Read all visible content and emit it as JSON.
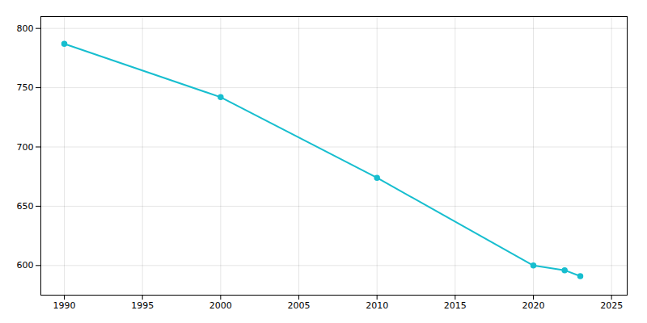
{
  "chart_data": {
    "type": "line",
    "x": [
      1990,
      2000,
      2010,
      2020,
      2022,
      2023
    ],
    "values": [
      787,
      742,
      674,
      600,
      596,
      591
    ],
    "color": "#17BECF",
    "marker": "circle",
    "xlim": [
      1988.5,
      2026
    ],
    "xticks": [
      1990,
      1995,
      2000,
      2005,
      2010,
      2015,
      2020,
      2025
    ],
    "ylim": [
      575,
      810
    ],
    "yticks": [
      600,
      650,
      700,
      750,
      800
    ],
    "grid": true
  }
}
